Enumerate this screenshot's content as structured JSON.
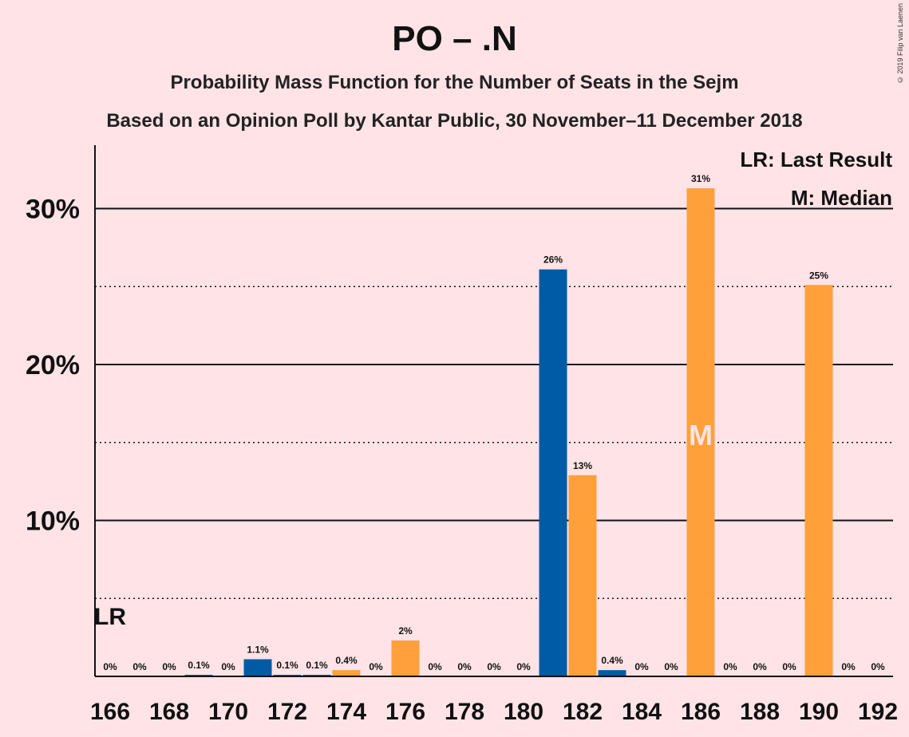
{
  "header": {
    "title": "PO – .N",
    "subtitle": "Probability Mass Function for the Number of Seats in the Sejm",
    "source": "Based on an Opinion Poll by Kantar Public, 30 November–11 December 2018",
    "copyright": "© 2019 Filip van Laenen"
  },
  "chart_data": {
    "type": "bar",
    "title": "PO – .N",
    "x": [
      166,
      167,
      168,
      169,
      170,
      171,
      172,
      173,
      174,
      175,
      176,
      177,
      178,
      179,
      180,
      181,
      182,
      183,
      184,
      185,
      186,
      187,
      188,
      189,
      190,
      191,
      192
    ],
    "values": [
      0,
      0,
      0,
      0.1,
      0,
      1.1,
      0.1,
      0.1,
      0.4,
      0,
      2.3,
      0,
      0,
      0,
      0,
      26.1,
      12.9,
      0.4,
      0,
      0,
      31.3,
      0,
      0,
      0,
      25.1,
      0,
      0
    ],
    "value_labels": [
      "0%",
      "0%",
      "0%",
      "0.1%",
      "0%",
      "1.1%",
      "0.1%",
      "0.1%",
      "0.4%",
      "0%",
      "2%",
      "0%",
      "0%",
      "0%",
      "0%",
      "26%",
      "13%",
      "0.4%",
      "0%",
      "0%",
      "31%",
      "0%",
      "0%",
      "0%",
      "25%",
      "0%",
      "0%"
    ],
    "bar_colors": [
      "#005ba6",
      "#ffa03a",
      "#005ba6",
      "#005ba6",
      "#ffa03a",
      "#005ba6",
      "#005ba6",
      "#005ba6",
      "#ffa03a",
      "#005ba6",
      "#ffa03a",
      "#005ba6",
      "#ffa03a",
      "#005ba6",
      "#ffa03a",
      "#005ba6",
      "#ffa03a",
      "#005ba6",
      "#ffa03a",
      "#005ba6",
      "#ffa03a",
      "#005ba6",
      "#ffa03a",
      "#005ba6",
      "#ffa03a",
      "#005ba6",
      "#ffa03a"
    ],
    "xticks": [
      "166",
      "168",
      "170",
      "172",
      "174",
      "176",
      "178",
      "180",
      "182",
      "184",
      "186",
      "188",
      "190",
      "192"
    ],
    "yticks": [
      "10%",
      "20%",
      "30%"
    ],
    "ylim": [
      0,
      34
    ],
    "major_gridlines": [
      10,
      20,
      30
    ],
    "minor_gridlines": [
      5,
      15,
      25
    ],
    "last_result": {
      "seat": 166,
      "label": "LR"
    },
    "median": {
      "seat": 186,
      "label": "M"
    },
    "legend": {
      "lr": "LR: Last Result",
      "median": "M: Median",
      "position": "top-right"
    },
    "colors": {
      "blue": "#005ba6",
      "orange": "#ffa03a",
      "background": "#ffe3e6"
    }
  }
}
